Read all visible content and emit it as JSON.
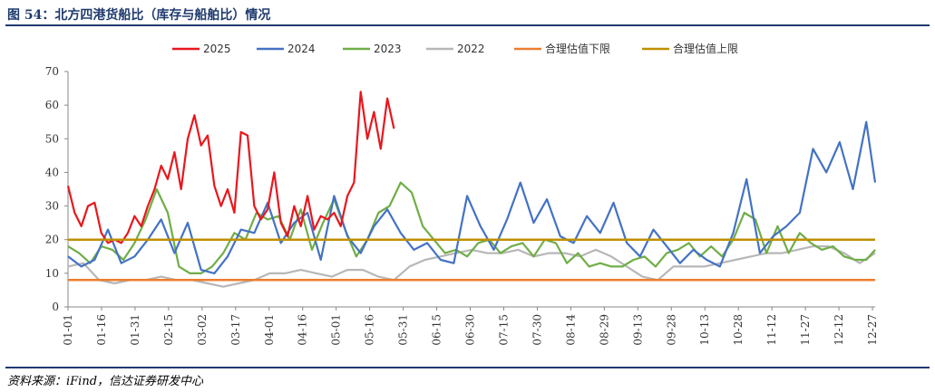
{
  "title": "图 54：北方四港货船比（库存与船舶比）情况",
  "source": "资料来源：iFind，信达证券研发中心",
  "chart_data": {
    "type": "line",
    "ylim": [
      0,
      70
    ],
    "yticks": [
      0,
      10,
      20,
      30,
      40,
      50,
      60,
      70
    ],
    "xticks": [
      "01-01",
      "01-16",
      "01-31",
      "02-15",
      "03-02",
      "03-17",
      "04-01",
      "04-16",
      "05-01",
      "05-16",
      "05-31",
      "06-15",
      "06-30",
      "07-15",
      "07-30",
      "08-14",
      "08-29",
      "09-13",
      "09-28",
      "10-13",
      "10-28",
      "11-12",
      "11-27",
      "12-12",
      "12-27"
    ],
    "grid": false,
    "legend_position": "top",
    "series": [
      {
        "name": "2025",
        "color": "#e8171d",
        "x": [
          1,
          4,
          7,
          10,
          13,
          16,
          19,
          22,
          25,
          28,
          31,
          34,
          37,
          40,
          43,
          46,
          49,
          52,
          55,
          58,
          61,
          64,
          67,
          70,
          73,
          76,
          79,
          82,
          85,
          88,
          91,
          94,
          97,
          100,
          103,
          106,
          109,
          112,
          115,
          118,
          121,
          124,
          127,
          130,
          133,
          136,
          139,
          142,
          145,
          148
        ],
        "values": [
          36,
          28,
          24,
          30,
          31,
          22,
          19,
          20,
          19,
          22,
          27,
          24,
          30,
          35,
          42,
          38,
          46,
          35,
          50,
          57,
          48,
          51,
          36,
          30,
          35,
          28,
          52,
          51,
          30,
          26,
          29,
          40,
          25,
          21,
          30,
          24,
          33,
          23,
          27,
          26,
          28,
          24,
          33,
          37,
          64,
          50,
          58,
          47,
          62,
          53
        ]
      },
      {
        "name": "2024",
        "color": "#4472c4",
        "x": [
          1,
          7,
          13,
          19,
          25,
          31,
          37,
          43,
          49,
          55,
          61,
          67,
          73,
          79,
          85,
          91,
          97,
          103,
          109,
          115,
          121,
          127,
          133,
          139,
          145,
          151,
          157,
          163,
          169,
          175,
          181,
          187,
          193,
          199,
          205,
          211,
          217,
          223,
          229,
          235,
          241,
          247,
          253,
          259,
          265,
          271,
          277,
          283,
          289,
          295,
          301,
          307,
          313,
          319,
          325,
          331,
          337,
          343,
          349,
          355,
          361,
          365
        ],
        "values": [
          15,
          12,
          14,
          23,
          13,
          15,
          20,
          26,
          16,
          25,
          11,
          10,
          15,
          23,
          22,
          31,
          19,
          25,
          28,
          14,
          33,
          21,
          16,
          24,
          29,
          22,
          17,
          19,
          14,
          13,
          33,
          24,
          17,
          26,
          37,
          25,
          32,
          21,
          19,
          27,
          22,
          31,
          19,
          15,
          23,
          18,
          13,
          17,
          14,
          12,
          22,
          38,
          16,
          21,
          24,
          28,
          47,
          40,
          49,
          35,
          55,
          37
        ]
      },
      {
        "name": "2023",
        "color": "#70ad47",
        "x": [
          1,
          6,
          11,
          16,
          21,
          26,
          31,
          36,
          41,
          46,
          51,
          56,
          61,
          66,
          71,
          76,
          81,
          86,
          91,
          96,
          101,
          106,
          111,
          116,
          121,
          126,
          131,
          136,
          141,
          146,
          151,
          156,
          161,
          166,
          171,
          176,
          181,
          186,
          191,
          196,
          201,
          206,
          211,
          216,
          221,
          226,
          231,
          236,
          241,
          246,
          251,
          256,
          261,
          266,
          271,
          276,
          281,
          286,
          291,
          296,
          301,
          306,
          311,
          316,
          321,
          326,
          331,
          336,
          341,
          346,
          351,
          356,
          361,
          365
        ],
        "values": [
          18,
          16,
          13,
          18,
          17,
          14,
          19,
          26,
          35,
          28,
          12,
          10,
          10,
          12,
          16,
          22,
          20,
          28,
          26,
          27,
          20,
          29,
          17,
          25,
          32,
          23,
          15,
          20,
          28,
          30,
          37,
          34,
          24,
          20,
          16,
          17,
          15,
          19,
          20,
          16,
          18,
          19,
          15,
          20,
          19,
          13,
          16,
          12,
          13,
          12,
          12,
          14,
          15,
          12,
          16,
          17,
          19,
          15,
          18,
          15,
          20,
          28,
          26,
          16,
          24,
          16,
          22,
          19,
          17,
          18,
          15,
          14,
          14,
          17
        ]
      },
      {
        "name": "2022",
        "color": "#b7b7b7",
        "x": [
          1,
          8,
          15,
          22,
          29,
          36,
          43,
          50,
          57,
          64,
          71,
          78,
          85,
          92,
          99,
          106,
          113,
          120,
          127,
          134,
          141,
          148,
          155,
          162,
          169,
          176,
          183,
          190,
          197,
          204,
          211,
          218,
          225,
          232,
          239,
          246,
          253,
          260,
          267,
          274,
          281,
          288,
          295,
          302,
          309,
          316,
          323,
          330,
          337,
          344,
          351,
          358,
          365
        ],
        "values": [
          12,
          13,
          8,
          7,
          8,
          8,
          9,
          8,
          8,
          7,
          6,
          7,
          8,
          10,
          10,
          11,
          10,
          9,
          11,
          11,
          9,
          8,
          12,
          14,
          15,
          16,
          17,
          16,
          16,
          17,
          15,
          16,
          16,
          15,
          17,
          15,
          12,
          9,
          8,
          12,
          12,
          12,
          13,
          14,
          15,
          16,
          16,
          17,
          18,
          18,
          16,
          13,
          16
        ]
      },
      {
        "name": "合理估值下限",
        "color": "#ed7d31",
        "x": [
          1,
          365
        ],
        "values": [
          8,
          8
        ]
      },
      {
        "name": "合理估值上限",
        "color": "#bf9000",
        "x": [
          1,
          365
        ],
        "values": [
          20,
          20
        ]
      }
    ]
  }
}
